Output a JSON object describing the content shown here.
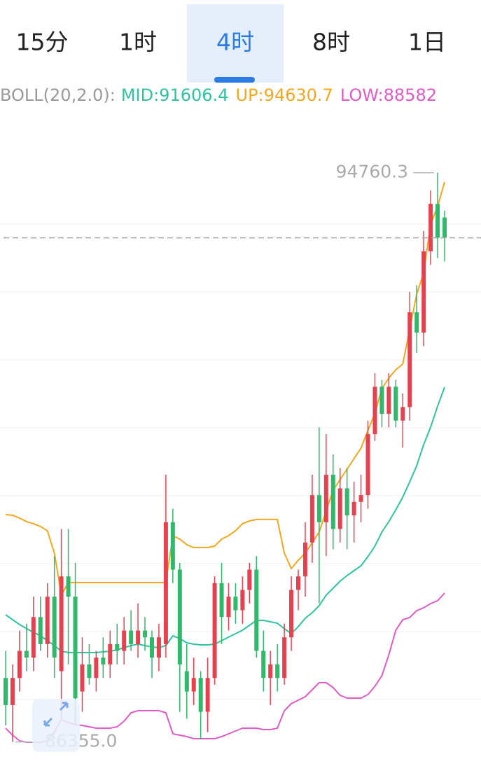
{
  "tabs": [
    "15分",
    "1时",
    "4时",
    "8时",
    "1日"
  ],
  "active_tab": 2,
  "chart_data": {
    "type": "candlestick",
    "indicator": "BOLL(20,2.0):",
    "ylim": [
      86000,
      95760
    ],
    "up_color": "#e8404f",
    "down_color": "#2fb96a",
    "open": [
      87300,
      86900,
      87300,
      87700,
      87600,
      88200,
      87800,
      88500,
      87400,
      88800,
      88500,
      87100,
      87500,
      87300,
      87600,
      87500,
      87800,
      87700,
      88000,
      87800,
      88000,
      87900,
      87600,
      87800,
      89600,
      88900,
      87400,
      87100,
      87300,
      86800,
      87300,
      88700,
      88200,
      88500,
      88300,
      88600,
      88900,
      87700,
      87300,
      87500,
      87300,
      87900,
      88600,
      88800,
      89300,
      90000,
      89600,
      90300,
      89500,
      90100,
      89700,
      89900,
      90000,
      90900,
      91600,
      91200,
      91600,
      91100,
      91300,
      92700,
      92400,
      93600,
      94300,
      94100
    ],
    "high": [
      87700,
      87500,
      88000,
      88100,
      88500,
      88500,
      88700,
      89100,
      89500,
      89500,
      89000,
      87900,
      87800,
      87700,
      87900,
      88000,
      88100,
      88200,
      88300,
      88400,
      88200,
      88000,
      88100,
      90300,
      89800,
      89000,
      87800,
      87600,
      87400,
      87600,
      88800,
      89000,
      88700,
      88700,
      88800,
      89000,
      89100,
      88000,
      87700,
      87800,
      88100,
      88800,
      88900,
      89600,
      90300,
      91000,
      90900,
      90600,
      90400,
      90400,
      90200,
      90300,
      91100,
      91800,
      91700,
      91800,
      91700,
      91500,
      93000,
      93100,
      93900,
      94500,
      94760.3,
      94200
    ],
    "low": [
      86600,
      86355,
      87100,
      87400,
      87400,
      87700,
      87600,
      87300,
      86700,
      87500,
      86600,
      86800,
      87200,
      87100,
      87300,
      87300,
      87500,
      87500,
      87700,
      87600,
      87700,
      87300,
      87400,
      87600,
      88700,
      86800,
      86700,
      86900,
      86400,
      86500,
      87200,
      87800,
      88000,
      88100,
      88100,
      88400,
      87600,
      87100,
      86900,
      87100,
      87200,
      87700,
      88300,
      88500,
      89000,
      88400,
      89100,
      89200,
      89300,
      89200,
      89300,
      89600,
      89800,
      90800,
      91000,
      91000,
      91000,
      90700,
      91100,
      92100,
      92200,
      93400,
      93500,
      93450
    ],
    "close": [
      86900,
      87300,
      87700,
      87600,
      88200,
      87800,
      88500,
      87600,
      88800,
      88500,
      87000,
      87500,
      87300,
      87600,
      87500,
      87800,
      87700,
      88000,
      87800,
      88000,
      87900,
      87600,
      87900,
      89600,
      88900,
      87500,
      87100,
      87300,
      86800,
      87300,
      88700,
      88200,
      88500,
      88300,
      88600,
      88900,
      87700,
      87300,
      87500,
      87300,
      87900,
      88600,
      88800,
      89300,
      90000,
      89600,
      90300,
      89500,
      90100,
      89700,
      89900,
      90000,
      90900,
      91600,
      91200,
      91600,
      91100,
      91300,
      92700,
      92400,
      93600,
      94300,
      93800,
      93800
    ],
    "high_marker": 94760.3,
    "low_marker": {
      "value": 86355,
      "label": "86355.0"
    },
    "series": [
      {
        "name": "MID",
        "legend_label": "MID:91606.4",
        "color": "#2ec4a0",
        "values": [
          88233,
          88161,
          88089,
          88027,
          87975,
          87923,
          87851,
          87778,
          87696,
          87675,
          87675,
          87675,
          87675,
          87675,
          87685,
          87696,
          87716,
          87747,
          87778,
          87799,
          87778,
          87758,
          87747,
          87778,
          87923,
          87882,
          87820,
          87799,
          87789,
          87789,
          87799,
          87851,
          87903,
          87954,
          88006,
          88078,
          88151,
          88151,
          88130,
          88109,
          88027,
          87954,
          88058,
          88182,
          88264,
          88368,
          88523,
          88626,
          88730,
          88812,
          88885,
          88957,
          89092,
          89247,
          89454,
          89609,
          89784,
          89971,
          90198,
          90436,
          90746,
          91005,
          91315,
          91594
        ]
      },
      {
        "name": "UP",
        "legend_label": "UP:94630.7",
        "color": "#f3a81b",
        "values": [
          89712,
          89702,
          89660,
          89609,
          89578,
          89536,
          89474,
          89143,
          88523,
          88709,
          88709,
          88709,
          88709,
          88709,
          88709,
          88709,
          88709,
          88709,
          88709,
          88709,
          88709,
          88709,
          88709,
          88709,
          89402,
          89350,
          89267,
          89226,
          89226,
          89226,
          89247,
          89350,
          89402,
          89474,
          89578,
          89619,
          89640,
          89640,
          89640,
          89640,
          89143,
          88916,
          89040,
          89143,
          89298,
          89454,
          89764,
          90074,
          90229,
          90384,
          90539,
          90694,
          90953,
          91211,
          91573,
          91728,
          91852,
          91935,
          92452,
          92969,
          93279,
          94003,
          94262,
          94624
        ]
      },
      {
        "name": "LOW",
        "legend_label": "LOW:88582",
        "color": "#e05cc4",
        "values": [
          86558,
          86455,
          86372,
          86352,
          86352,
          86352,
          86372,
          86507,
          86682,
          86641,
          86610,
          86600,
          86579,
          86558,
          86558,
          86558,
          86579,
          86662,
          86786,
          86817,
          86817,
          86817,
          86817,
          86786,
          86476,
          86455,
          86434,
          86403,
          86403,
          86403,
          86403,
          86434,
          86476,
          86517,
          86558,
          86558,
          86558,
          86538,
          86538,
          86558,
          86817,
          86920,
          86972,
          87024,
          87127,
          87230,
          87230,
          87158,
          87044,
          87003,
          87003,
          87003,
          87055,
          87179,
          87334,
          87644,
          88006,
          88161,
          88192,
          88295,
          88337,
          88399,
          88441,
          88554
        ]
      }
    ]
  }
}
